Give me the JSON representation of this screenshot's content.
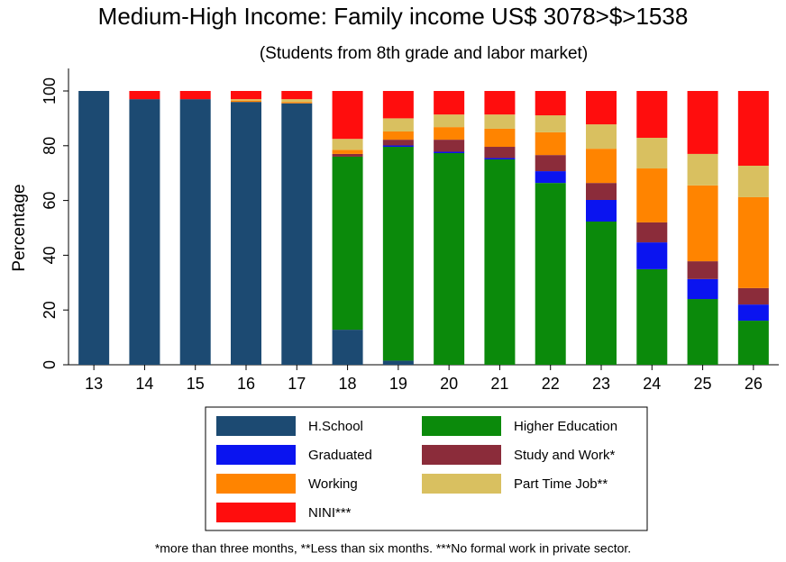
{
  "chart_data": {
    "type": "stacked_bar",
    "title": "Medium-High Income: Family income US$ 3078>$>1538",
    "subtitle": "(Students from 8th grade and labor market)",
    "y_label": "Percentage",
    "note": "*more than three months, **Less than six months. ***No formal work in private sector.",
    "categories": [
      "13",
      "14",
      "15",
      "16",
      "17",
      "18",
      "19",
      "20",
      "21",
      "22",
      "23",
      "24",
      "25",
      "26"
    ],
    "series": [
      {
        "name": "H.School",
        "color": "#1c4a72",
        "values": [
          100,
          97,
          97,
          96,
          95.5,
          12.8,
          1.5,
          0,
          0,
          0,
          0,
          0,
          0,
          0
        ]
      },
      {
        "name": "Higher Education",
        "color": "#0b8a0b",
        "values": [
          0,
          0,
          0,
          0,
          0,
          63.2,
          78.1,
          77.3,
          75,
          66.4,
          52.3,
          34.9,
          24,
          16.1
        ]
      },
      {
        "name": "Graduated",
        "color": "#0a14f0",
        "values": [
          0,
          0,
          0,
          0,
          0,
          0,
          0.5,
          0.5,
          0.5,
          4.3,
          7.9,
          9.8,
          7.3,
          5.9
        ]
      },
      {
        "name": "Study and Work*",
        "color": "#8b2c3a",
        "values": [
          0,
          0,
          0,
          0,
          0,
          1,
          2.1,
          4.4,
          4.1,
          5.9,
          6.2,
          7.3,
          6.5,
          6
        ]
      },
      {
        "name": "Working",
        "color": "#ff8400",
        "values": [
          0,
          0,
          0,
          0.5,
          0.5,
          1.5,
          3,
          4.6,
          6.6,
          8.3,
          12.5,
          19.7,
          27.7,
          33.2
        ]
      },
      {
        "name": "Part Time Job**",
        "color": "#d9c060",
        "values": [
          0,
          0,
          0,
          0.5,
          1,
          4,
          4.8,
          4.6,
          5.2,
          6.2,
          8.9,
          11.2,
          11.5,
          11.5
        ]
      },
      {
        "name": "NINI***",
        "color": "#ff0d0d",
        "values": [
          0,
          3,
          3,
          3,
          3,
          17.5,
          10,
          8.6,
          8.6,
          8.9,
          12.2,
          17.1,
          23,
          27.3
        ]
      }
    ],
    "ylim": [
      0,
      100
    ],
    "yticks": [
      0,
      20,
      40,
      60,
      80,
      100
    ],
    "grid": false
  }
}
